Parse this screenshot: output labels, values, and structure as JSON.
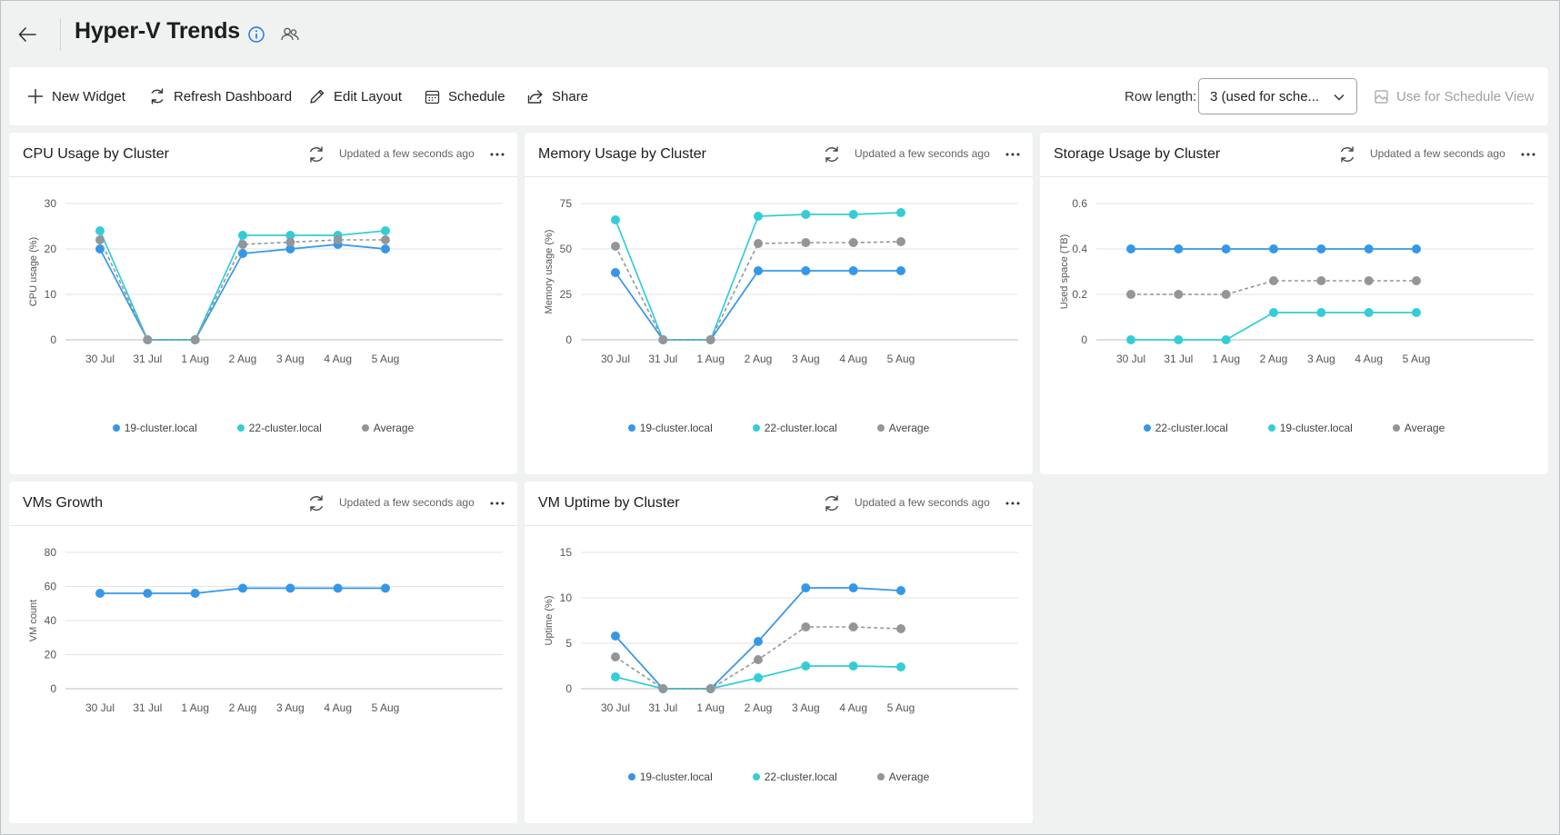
{
  "header": {
    "title": "Hyper-V Trends"
  },
  "toolbar": {
    "new_widget": "New Widget",
    "refresh_dashboard": "Refresh Dashboard",
    "edit_layout": "Edit Layout",
    "schedule": "Schedule",
    "share": "Share",
    "row_length_label": "Row length:",
    "row_length_value": "3 (used for sche...",
    "use_schedule_view": "Use for Schedule View"
  },
  "colors": {
    "blue": "#3597e8",
    "teal": "#33cdd8",
    "gray": "#939699",
    "accent": "#1a73e8"
  },
  "updated_text": "Updated a few seconds ago",
  "widgets": [
    {
      "title": "CPU Usage by Cluster",
      "legend": [
        "19-cluster.local",
        "22-cluster.local",
        "Average"
      ]
    },
    {
      "title": "Memory Usage by Cluster",
      "legend": [
        "19-cluster.local",
        "22-cluster.local",
        "Average"
      ]
    },
    {
      "title": "Storage Usage by Cluster",
      "legend": [
        "22-cluster.local",
        "19-cluster.local",
        "Average"
      ]
    },
    {
      "title": "VMs Growth",
      "legend": []
    },
    {
      "title": "VM Uptime by Cluster",
      "legend": [
        "19-cluster.local",
        "22-cluster.local",
        "Average"
      ]
    }
  ],
  "chart_data": [
    {
      "type": "line",
      "title": "CPU Usage by Cluster",
      "ylabel": "CPU usage (%)",
      "ylim": [
        0,
        30
      ],
      "yticks": [
        "0",
        "10",
        "20",
        "30"
      ],
      "categories": [
        "30 Jul",
        "31 Jul",
        "1 Aug",
        "2 Aug",
        "3 Aug",
        "4 Aug",
        "5 Aug"
      ],
      "series": [
        {
          "name": "19-cluster.local",
          "color": "blue",
          "dashed": false,
          "values": [
            20,
            0,
            0,
            19,
            20,
            21,
            20
          ]
        },
        {
          "name": "22-cluster.local",
          "color": "teal",
          "dashed": false,
          "values": [
            24,
            0,
            0,
            23,
            23,
            23,
            24
          ]
        },
        {
          "name": "Average",
          "color": "gray",
          "dashed": true,
          "values": [
            22,
            0,
            0,
            21,
            21.5,
            22,
            22
          ]
        }
      ]
    },
    {
      "type": "line",
      "title": "Memory Usage by Cluster",
      "ylabel": "Memory usage (%)",
      "ylim": [
        0,
        75
      ],
      "yticks": [
        "0",
        "25",
        "50",
        "75"
      ],
      "categories": [
        "30 Jul",
        "31 Jul",
        "1 Aug",
        "2 Aug",
        "3 Aug",
        "4 Aug",
        "5 Aug"
      ],
      "series": [
        {
          "name": "19-cluster.local",
          "color": "blue",
          "dashed": false,
          "values": [
            37,
            0,
            0,
            38,
            38,
            38,
            38
          ]
        },
        {
          "name": "22-cluster.local",
          "color": "teal",
          "dashed": false,
          "values": [
            66,
            0,
            0,
            68,
            69,
            69,
            70
          ]
        },
        {
          "name": "Average",
          "color": "gray",
          "dashed": true,
          "values": [
            51.5,
            0,
            0,
            53,
            53.5,
            53.5,
            54
          ]
        }
      ]
    },
    {
      "type": "line",
      "title": "Storage Usage by Cluster",
      "ylabel": "Used space (TB)",
      "ylim": [
        0,
        0.6
      ],
      "yticks": [
        "0",
        "0.2",
        "0.4",
        "0.6"
      ],
      "categories": [
        "30 Jul",
        "31 Jul",
        "1 Aug",
        "2 Aug",
        "3 Aug",
        "4 Aug",
        "5 Aug"
      ],
      "series": [
        {
          "name": "22-cluster.local",
          "color": "blue",
          "dashed": false,
          "values": [
            0.4,
            0.4,
            0.4,
            0.4,
            0.4,
            0.4,
            0.4
          ]
        },
        {
          "name": "19-cluster.local",
          "color": "teal",
          "dashed": false,
          "values": [
            0,
            0,
            0,
            0.12,
            0.12,
            0.12,
            0.12
          ]
        },
        {
          "name": "Average",
          "color": "gray",
          "dashed": true,
          "values": [
            0.2,
            0.2,
            0.2,
            0.26,
            0.26,
            0.26,
            0.26
          ]
        }
      ]
    },
    {
      "type": "line",
      "title": "VMs Growth",
      "ylabel": "VM count",
      "ylim": [
        0,
        80
      ],
      "yticks": [
        "0",
        "20",
        "40",
        "60",
        "80"
      ],
      "categories": [
        "30 Jul",
        "31 Jul",
        "1 Aug",
        "2 Aug",
        "3 Aug",
        "4 Aug",
        "5 Aug"
      ],
      "series": [
        {
          "color": "blue",
          "dashed": false,
          "values": [
            56,
            56,
            56,
            59,
            59,
            59,
            59
          ]
        }
      ]
    },
    {
      "type": "line",
      "title": "VM Uptime by Cluster",
      "ylabel": "Uptime (%)",
      "ylim": [
        0,
        15
      ],
      "yticks": [
        "0",
        "5",
        "10",
        "15"
      ],
      "categories": [
        "30 Jul",
        "31 Jul",
        "1 Aug",
        "2 Aug",
        "3 Aug",
        "4 Aug",
        "5 Aug"
      ],
      "series": [
        {
          "name": "19-cluster.local",
          "color": "blue",
          "dashed": false,
          "values": [
            5.8,
            0,
            0,
            5.2,
            11.1,
            11.1,
            10.8
          ]
        },
        {
          "name": "22-cluster.local",
          "color": "teal",
          "dashed": false,
          "values": [
            1.3,
            0,
            0,
            1.2,
            2.5,
            2.5,
            2.4
          ]
        },
        {
          "name": "Average",
          "color": "gray",
          "dashed": true,
          "values": [
            3.5,
            0,
            0,
            3.2,
            6.8,
            6.8,
            6.6
          ]
        }
      ]
    }
  ]
}
